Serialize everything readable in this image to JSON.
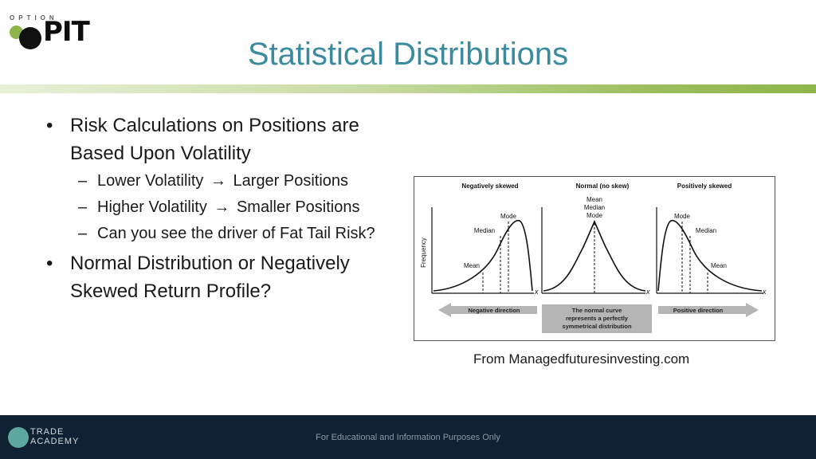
{
  "logo": {
    "top_text": "OPTION",
    "main_text": "PIT"
  },
  "title": "Statistical Distributions",
  "bullets": [
    {
      "text": "Risk Calculations on Positions are Based Upon Volatility",
      "sub": [
        {
          "before": "Lower Volatility",
          "after": "Larger Positions"
        },
        {
          "before": "Higher Volatility",
          "after": "Smaller Positions"
        },
        {
          "before": "Can you see the driver of Fat Tail Risk?",
          "after": ""
        }
      ]
    },
    {
      "text": "Normal Distribution or Negatively Skewed Return Profile?"
    }
  ],
  "bullet_symbol": "•",
  "dash_symbol": "–",
  "arrow_symbol": "→",
  "figure": {
    "panels": [
      {
        "title": "Negatively skewed",
        "labels": {
          "mode": "Mode",
          "median": "Median",
          "mean": "Mean"
        },
        "axis_x": "x"
      },
      {
        "title": "Normal (no skew)",
        "labels": {
          "mean": "Mean",
          "median": "Median",
          "mode": "Mode"
        },
        "axis_x": "x"
      },
      {
        "title": "Positively skewed",
        "labels": {
          "mode": "Mode",
          "median": "Median",
          "mean": "Mean"
        },
        "axis_x": "x"
      }
    ],
    "ylabel": "Frequency",
    "direction_left": "Negative direction",
    "direction_right": "Positive direction",
    "center_note_line1": "The normal curve",
    "center_note_line2": "represents a perfectly",
    "center_note_line3": "symmetrical distribution"
  },
  "caption": "From Managedfuturesinvesting.com",
  "footer": {
    "logo_line1": "TRADE",
    "logo_line2": "ACADEMY",
    "text": "For Educational and Information Purposes Only"
  },
  "colors": {
    "title": "#3a8aa0",
    "rule_end": "#8cb64c",
    "footer_bg": "#0f2234"
  }
}
